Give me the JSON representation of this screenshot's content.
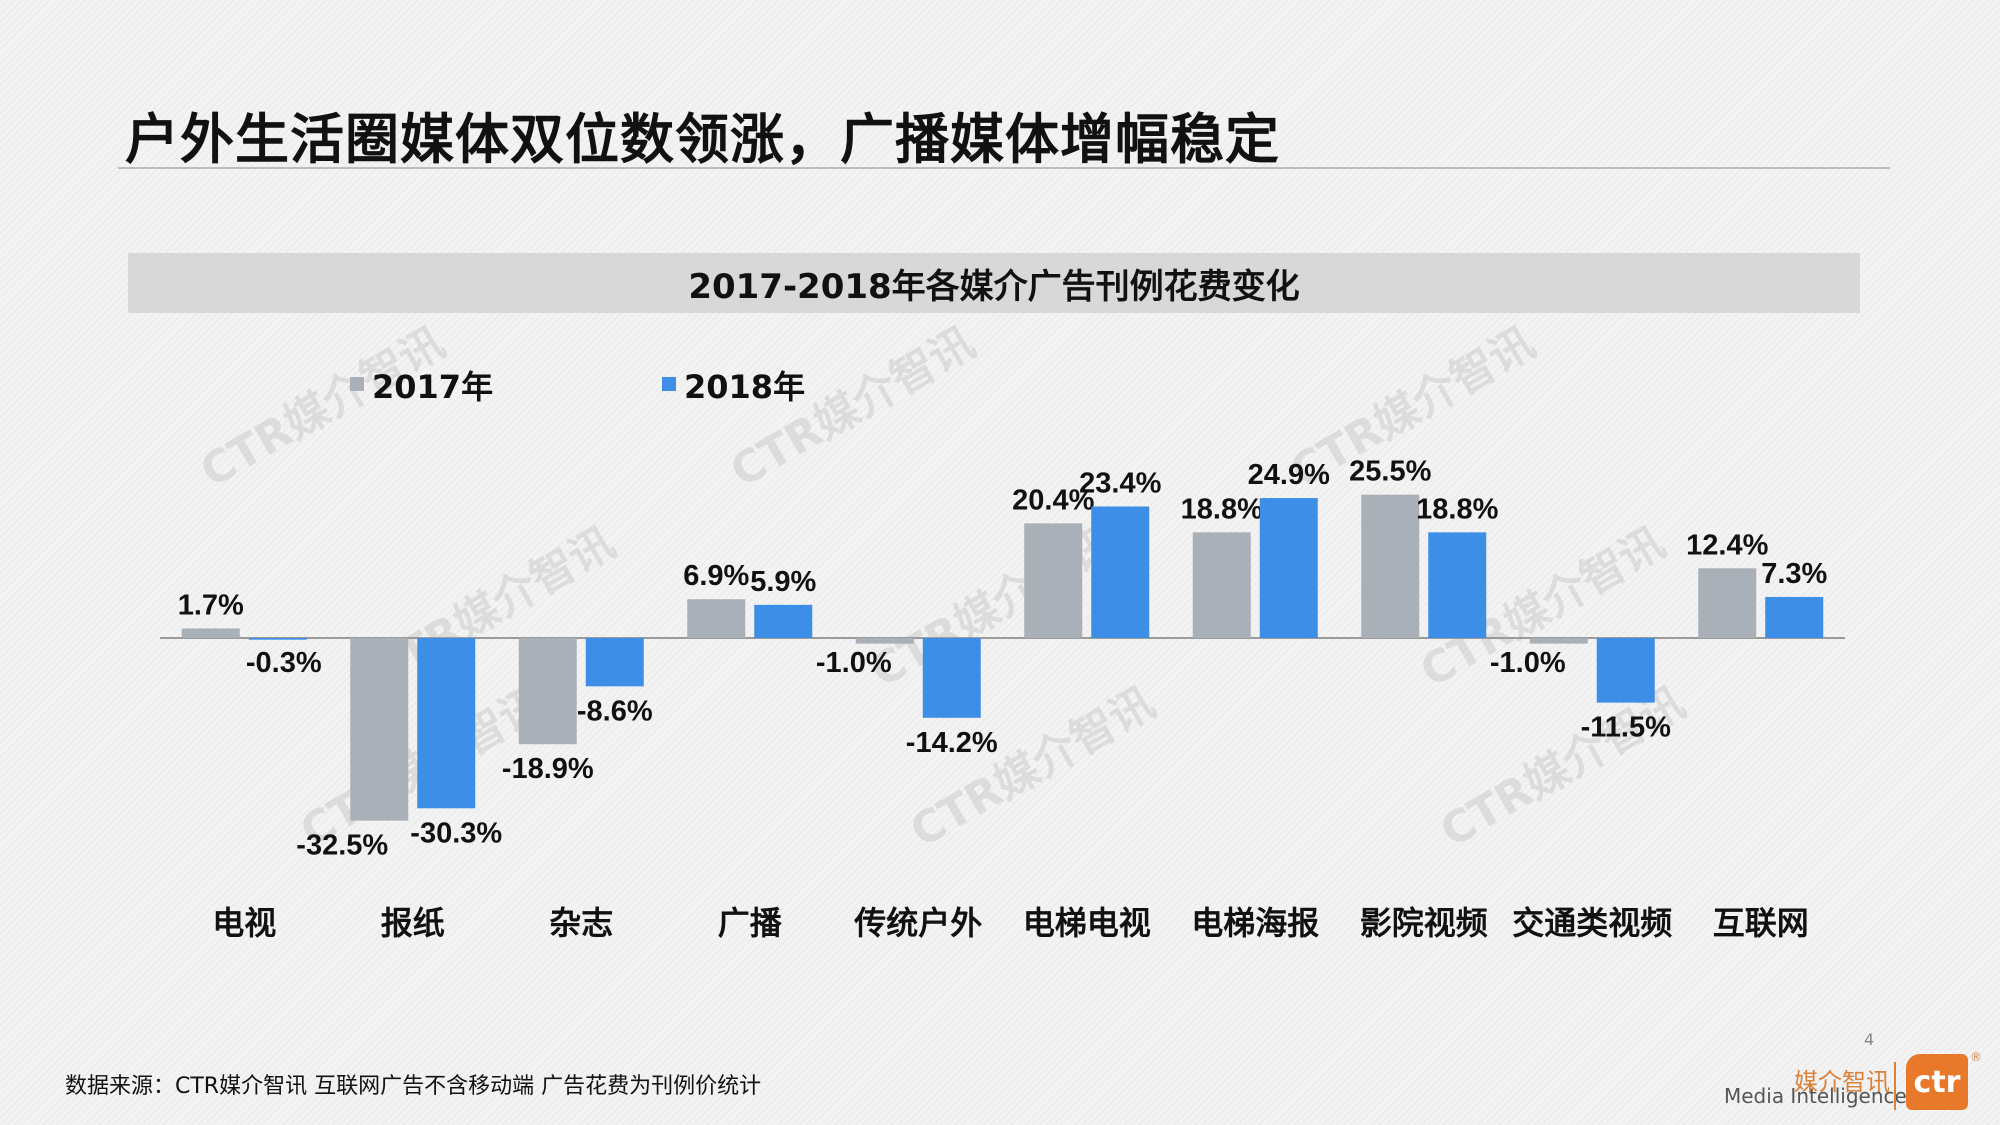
{
  "slide": {
    "title": "户外生活圈媒体双位数领涨，广播媒体增幅稳定",
    "page_number": "4",
    "source_note": "数据来源：CTR媒介智讯 互联网广告不含移动端 广告花费为刊例价统计",
    "brand_cn": "媒介智讯",
    "brand_en": "Media Intelligence",
    "logo_text": "ctr",
    "logo_mark": "®",
    "watermark_text": "CTR媒介智讯"
  },
  "colors": {
    "series_2017": "#a9b0b8",
    "series_2018": "#3d8ee6",
    "axis": "#9a9a9a",
    "text": "#111111",
    "watermark": "#c4c4c4"
  },
  "chart_data": {
    "type": "bar",
    "title": "2017-2018年各媒介广告刊例花费变化",
    "categories": [
      "电视",
      "报纸",
      "杂志",
      "广播",
      "传统户外",
      "电梯电视",
      "电梯海报",
      "影院视频",
      "交通类视频",
      "互联网"
    ],
    "series": [
      {
        "name": "2017年",
        "values": [
          1.7,
          -32.5,
          -18.9,
          6.9,
          -1.0,
          20.4,
          18.8,
          25.5,
          -1.0,
          12.4
        ],
        "labels": [
          "1.7%",
          "-32.5%",
          "-18.9%",
          "6.9%",
          "-1.0%",
          "20.4%",
          "18.8%",
          "25.5%",
          "-1.0%",
          "12.4%"
        ]
      },
      {
        "name": "2018年",
        "values": [
          -0.3,
          -30.3,
          -8.6,
          5.9,
          -14.2,
          23.4,
          24.9,
          18.8,
          -11.5,
          7.3
        ],
        "labels": [
          "-0.3%",
          "-30.3%",
          "-8.6%",
          "5.9%",
          "-14.2%",
          "23.4%",
          "24.9%",
          "18.8%",
          "-11.5%",
          "7.3%"
        ]
      }
    ],
    "unit": "%",
    "ylim": [
      -35,
      28
    ],
    "legend_position": "top-left",
    "grid": false
  }
}
